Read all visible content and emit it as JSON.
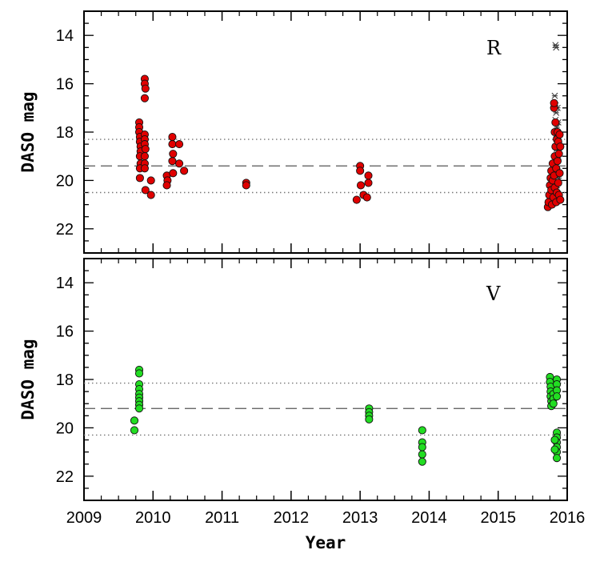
{
  "chart_data": {
    "type": "scatter",
    "xlabel": "Year",
    "xlim": [
      2009,
      2016
    ],
    "x_ticks": [
      "2009",
      "2010",
      "2011",
      "2012",
      "2013",
      "2014",
      "2015",
      "2016"
    ],
    "panels": [
      {
        "label": "R",
        "ylabel": "DASO mag",
        "ylim": [
          23,
          13
        ],
        "y_ticks": [
          "14",
          "16",
          "18",
          "20",
          "22"
        ],
        "marker_color": "#e00000",
        "reference_lines": [
          {
            "style": "dotted",
            "y": 18.3
          },
          {
            "style": "dashed",
            "y": 19.4
          },
          {
            "style": "dotted",
            "y": 20.5
          }
        ],
        "points": [
          {
            "x": 2009.8,
            "y": 17.6
          },
          {
            "x": 2009.8,
            "y": 17.8
          },
          {
            "x": 2009.8,
            "y": 18.0
          },
          {
            "x": 2009.81,
            "y": 18.2
          },
          {
            "x": 2009.81,
            "y": 18.4
          },
          {
            "x": 2009.82,
            "y": 18.6
          },
          {
            "x": 2009.82,
            "y": 18.8
          },
          {
            "x": 2009.81,
            "y": 19.0
          },
          {
            "x": 2009.82,
            "y": 19.3
          },
          {
            "x": 2009.81,
            "y": 19.5
          },
          {
            "x": 2009.81,
            "y": 19.9
          },
          {
            "x": 2009.88,
            "y": 15.8
          },
          {
            "x": 2009.88,
            "y": 16.0
          },
          {
            "x": 2009.89,
            "y": 16.2
          },
          {
            "x": 2009.88,
            "y": 16.6
          },
          {
            "x": 2009.88,
            "y": 18.1
          },
          {
            "x": 2009.88,
            "y": 18.3
          },
          {
            "x": 2009.88,
            "y": 18.5
          },
          {
            "x": 2009.89,
            "y": 18.7
          },
          {
            "x": 2009.88,
            "y": 19.0
          },
          {
            "x": 2009.88,
            "y": 19.3
          },
          {
            "x": 2009.88,
            "y": 19.5
          },
          {
            "x": 2009.89,
            "y": 20.4
          },
          {
            "x": 2009.97,
            "y": 20.0
          },
          {
            "x": 2009.97,
            "y": 20.6
          },
          {
            "x": 2010.2,
            "y": 19.8
          },
          {
            "x": 2010.21,
            "y": 20.0
          },
          {
            "x": 2010.2,
            "y": 20.2
          },
          {
            "x": 2010.28,
            "y": 18.2
          },
          {
            "x": 2010.28,
            "y": 18.5
          },
          {
            "x": 2010.29,
            "y": 18.9
          },
          {
            "x": 2010.28,
            "y": 19.2
          },
          {
            "x": 2010.29,
            "y": 19.7
          },
          {
            "x": 2010.38,
            "y": 18.5
          },
          {
            "x": 2010.38,
            "y": 19.3
          },
          {
            "x": 2010.45,
            "y": 19.6
          },
          {
            "x": 2011.35,
            "y": 20.1
          },
          {
            "x": 2011.35,
            "y": 20.2
          },
          {
            "x": 2012.95,
            "y": 20.8
          },
          {
            "x": 2013.0,
            "y": 19.4
          },
          {
            "x": 2013.0,
            "y": 19.6
          },
          {
            "x": 2013.01,
            "y": 20.2
          },
          {
            "x": 2013.05,
            "y": 20.6
          },
          {
            "x": 2013.1,
            "y": 20.7
          },
          {
            "x": 2013.12,
            "y": 20.1
          },
          {
            "x": 2013.12,
            "y": 19.8
          },
          {
            "x": 2015.72,
            "y": 21.1
          },
          {
            "x": 2015.73,
            "y": 20.9
          },
          {
            "x": 2015.74,
            "y": 20.6
          },
          {
            "x": 2015.75,
            "y": 20.2
          },
          {
            "x": 2015.76,
            "y": 19.9
          },
          {
            "x": 2015.77,
            "y": 20.4
          },
          {
            "x": 2015.77,
            "y": 19.6
          },
          {
            "x": 2015.78,
            "y": 21.0
          },
          {
            "x": 2015.79,
            "y": 20.0
          },
          {
            "x": 2015.79,
            "y": 19.3
          },
          {
            "x": 2015.8,
            "y": 20.7
          },
          {
            "x": 2015.81,
            "y": 17.0
          },
          {
            "x": 2015.81,
            "y": 16.8
          },
          {
            "x": 2015.81,
            "y": 19.8
          },
          {
            "x": 2015.82,
            "y": 18.0
          },
          {
            "x": 2015.82,
            "y": 19.0
          },
          {
            "x": 2015.82,
            "y": 20.3
          },
          {
            "x": 2015.83,
            "y": 17.6
          },
          {
            "x": 2015.83,
            "y": 18.6
          },
          {
            "x": 2015.84,
            "y": 20.9
          },
          {
            "x": 2015.84,
            "y": 19.5
          },
          {
            "x": 2015.85,
            "y": 18.3
          },
          {
            "x": 2015.85,
            "y": 20.5
          },
          {
            "x": 2015.86,
            "y": 18.0
          },
          {
            "x": 2015.86,
            "y": 19.2
          },
          {
            "x": 2015.87,
            "y": 20.1
          },
          {
            "x": 2015.87,
            "y": 18.4
          },
          {
            "x": 2015.88,
            "y": 18.9
          },
          {
            "x": 2015.88,
            "y": 20.6
          },
          {
            "x": 2015.89,
            "y": 18.1
          },
          {
            "x": 2015.89,
            "y": 19.7
          },
          {
            "x": 2015.9,
            "y": 18.6
          },
          {
            "x": 2015.9,
            "y": 20.8
          }
        ],
        "upper_limits": [
          {
            "x": 2015.83,
            "y": 14.4
          },
          {
            "x": 2015.84,
            "y": 14.5
          },
          {
            "x": 2015.82,
            "y": 16.5
          },
          {
            "x": 2015.83,
            "y": 16.9
          },
          {
            "x": 2015.84,
            "y": 17.2
          },
          {
            "x": 2015.83,
            "y": 17.5
          },
          {
            "x": 2015.85,
            "y": 17.8
          },
          {
            "x": 2015.84,
            "y": 18.1
          },
          {
            "x": 2015.86,
            "y": 18.4
          },
          {
            "x": 2015.85,
            "y": 18.7
          },
          {
            "x": 2015.87,
            "y": 19.0
          },
          {
            "x": 2015.84,
            "y": 19.3
          },
          {
            "x": 2015.86,
            "y": 19.6
          },
          {
            "x": 2015.88,
            "y": 19.9
          },
          {
            "x": 2015.85,
            "y": 20.2
          },
          {
            "x": 2015.87,
            "y": 17.6
          },
          {
            "x": 2015.86,
            "y": 17.0
          },
          {
            "x": 2015.88,
            "y": 18.2
          }
        ]
      },
      {
        "label": "V",
        "ylabel": "DASO mag",
        "ylim": [
          23,
          13
        ],
        "y_ticks": [
          "14",
          "16",
          "18",
          "20",
          "22"
        ],
        "marker_color": "#22dd22",
        "reference_lines": [
          {
            "style": "dotted",
            "y": 18.15
          },
          {
            "style": "dashed",
            "y": 19.2
          },
          {
            "style": "dotted",
            "y": 20.3
          }
        ],
        "points": [
          {
            "x": 2009.73,
            "y": 19.7
          },
          {
            "x": 2009.73,
            "y": 20.1
          },
          {
            "x": 2009.8,
            "y": 17.6
          },
          {
            "x": 2009.8,
            "y": 17.75
          },
          {
            "x": 2009.8,
            "y": 18.2
          },
          {
            "x": 2009.8,
            "y": 18.4
          },
          {
            "x": 2009.8,
            "y": 18.6
          },
          {
            "x": 2009.8,
            "y": 18.75
          },
          {
            "x": 2009.8,
            "y": 18.9
          },
          {
            "x": 2009.8,
            "y": 19.05
          },
          {
            "x": 2009.8,
            "y": 19.2
          },
          {
            "x": 2013.13,
            "y": 19.2
          },
          {
            "x": 2013.13,
            "y": 19.35
          },
          {
            "x": 2013.13,
            "y": 19.5
          },
          {
            "x": 2013.13,
            "y": 19.65
          },
          {
            "x": 2013.9,
            "y": 20.1
          },
          {
            "x": 2013.9,
            "y": 20.6
          },
          {
            "x": 2013.9,
            "y": 20.8
          },
          {
            "x": 2013.9,
            "y": 21.1
          },
          {
            "x": 2013.9,
            "y": 21.4
          },
          {
            "x": 2015.75,
            "y": 17.9
          },
          {
            "x": 2015.75,
            "y": 18.1
          },
          {
            "x": 2015.76,
            "y": 18.3
          },
          {
            "x": 2015.76,
            "y": 18.5
          },
          {
            "x": 2015.76,
            "y": 18.7
          },
          {
            "x": 2015.77,
            "y": 18.9
          },
          {
            "x": 2015.77,
            "y": 19.1
          },
          {
            "x": 2015.8,
            "y": 18.6
          },
          {
            "x": 2015.8,
            "y": 18.8
          },
          {
            "x": 2015.8,
            "y": 19.0
          },
          {
            "x": 2015.85,
            "y": 18.0
          },
          {
            "x": 2015.85,
            "y": 18.2
          },
          {
            "x": 2015.85,
            "y": 18.45
          },
          {
            "x": 2015.85,
            "y": 18.7
          },
          {
            "x": 2015.85,
            "y": 20.2
          },
          {
            "x": 2015.85,
            "y": 20.4
          },
          {
            "x": 2015.85,
            "y": 20.6
          },
          {
            "x": 2015.85,
            "y": 20.8
          },
          {
            "x": 2015.85,
            "y": 21.0
          },
          {
            "x": 2015.85,
            "y": 21.25
          },
          {
            "x": 2015.82,
            "y": 20.5
          },
          {
            "x": 2015.82,
            "y": 20.9
          }
        ],
        "upper_limits": []
      }
    ]
  }
}
